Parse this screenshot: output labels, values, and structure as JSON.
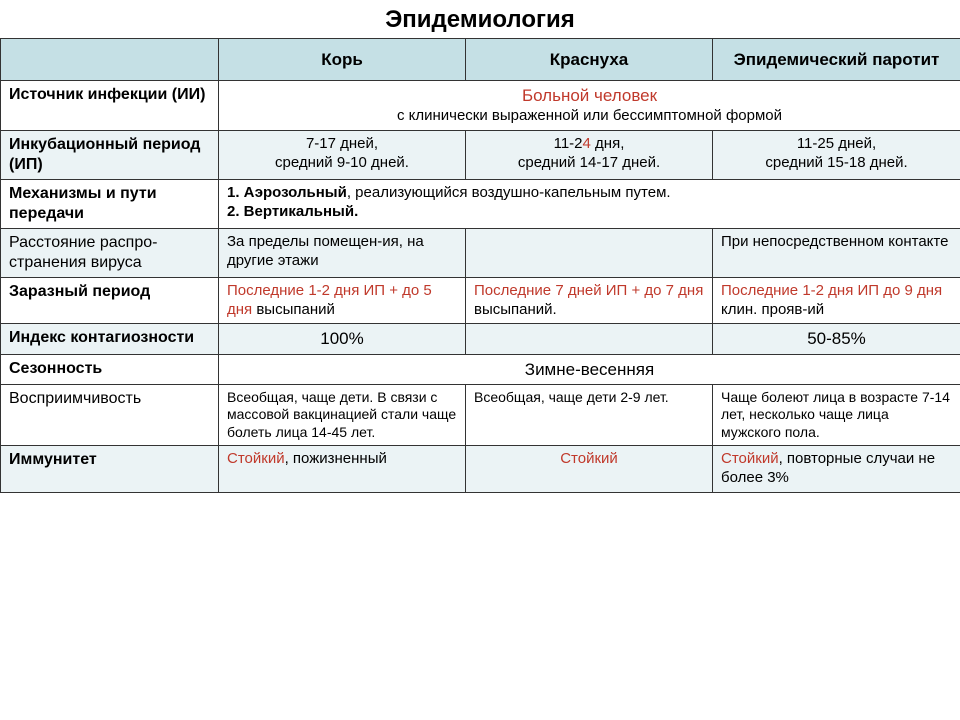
{
  "title": "Эпидемиология",
  "headers": {
    "c1": "Корь",
    "c2": "Краснуха",
    "c3": "Эпидемический паротит"
  },
  "rows": {
    "source": {
      "label": "Источник инфекции (ИИ)",
      "strong": "Больной человек",
      "sub": "с клинически выраженной или бессимптомной формой"
    },
    "incubation": {
      "label": "Инкубационный период (ИП)",
      "c1a": "7-17 дней,",
      "c1b": "средний 9-10 дней.",
      "c2a": "11-2",
      "c2red": "4",
      "c2a2": " дня,",
      "c2b": "средний 14-17 дней.",
      "c3a": "11-25 дней,",
      "c3b": "средний 15-18 дней."
    },
    "mechanism": {
      "label": "Механизмы и пути передачи",
      "l1a": "1. Аэрозольный",
      "l1b": ", реализующийся воздушно-капельным путем.",
      "l2": "2. Вертикальный."
    },
    "distance": {
      "label": "Расстояние распро-странения вируса",
      "c1": "За пределы помещен-ия, на другие этажи",
      "c2": "",
      "c3": "При непосредственном контакте"
    },
    "infectious": {
      "label": "Заразный период",
      "c1r": "Последние 1-2 дня ИП + до 5 дня",
      "c1": " высыпаний",
      "c2r": "Последние 7 дней ИП + до 7 дня",
      "c2": " высыпаний.",
      "c3r": "Последние 1-2 дня ИП до 9 дня",
      "c3": " клин. прояв-ий"
    },
    "index": {
      "label": "Индекс контагиозности",
      "c1": "100%",
      "c2": "",
      "c3": "50-85%"
    },
    "season": {
      "label": "Сезонность",
      "val": "Зимне-весенняя"
    },
    "suscept": {
      "label": "Восприимчивость",
      "c1": "Всеобщая, чаще дети. В связи с массовой вакцинацией стали чаще болеть лица 14-45 лет.",
      "c2": "Всеобщая, чаще дети 2-9 лет.",
      "c3": "Чаще болеют лица в возрасте 7-14 лет, несколько чаще лица мужского пола."
    },
    "immunity": {
      "label": "Иммунитет",
      "c1r": "Стойкий",
      "c1": ", пожизненный",
      "c2r": "Стойкий",
      "c3r": "Стойкий",
      "c3": ", повторные случаи не более 3%"
    }
  }
}
